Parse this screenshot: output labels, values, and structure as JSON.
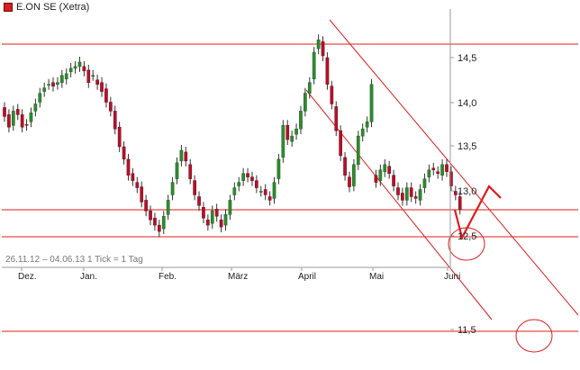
{
  "legend": {
    "label": "E.ON SE (Xetra)"
  },
  "range_label": "26.11.12 – 04.06.13   1 Tick = 1 Tag",
  "colors": {
    "up": "#2e8b2e",
    "down": "#b3122a",
    "annotation": "#e01b1b",
    "axis": "#999999"
  },
  "chart_data": {
    "type": "candlestick",
    "title": "",
    "x_labels": [
      "Dez.",
      "Jan.",
      "Feb.",
      "März",
      "April",
      "Mai",
      "Juni"
    ],
    "y_ticks": [
      "14,5",
      "14,0",
      "13,5",
      "13,0",
      "12,5",
      "11,5"
    ],
    "ylim": [
      11.4,
      14.95
    ],
    "grid": false,
    "series": [
      {
        "name": "",
        "values": [
          [
            13.94,
            13.84
          ],
          [
            13.86,
            13.72
          ],
          [
            13.74,
            13.9
          ],
          [
            13.92,
            13.86
          ],
          [
            13.86,
            13.72
          ],
          [
            13.75,
            13.74
          ],
          [
            13.78,
            13.88
          ],
          [
            13.9,
            13.98
          ],
          [
            14.0,
            14.1
          ],
          [
            14.12,
            14.16
          ],
          [
            14.2,
            14.2
          ],
          [
            14.22,
            14.18
          ],
          [
            14.2,
            14.22
          ],
          [
            14.22,
            14.3
          ],
          [
            14.26,
            14.32
          ],
          [
            14.34,
            14.38
          ],
          [
            14.38,
            14.4
          ],
          [
            14.4,
            14.45
          ],
          [
            14.4,
            14.35
          ],
          [
            14.36,
            14.22
          ],
          [
            14.3,
            14.3
          ],
          [
            14.25,
            14.2
          ],
          [
            14.22,
            14.12
          ],
          [
            14.15,
            14.0
          ],
          [
            14.0,
            13.9
          ],
          [
            13.9,
            13.7
          ],
          [
            13.72,
            13.5
          ],
          [
            13.5,
            13.36
          ],
          [
            13.36,
            13.18
          ],
          [
            13.2,
            13.12
          ],
          [
            13.1,
            13.04
          ],
          [
            13.05,
            12.88
          ],
          [
            12.9,
            12.78
          ],
          [
            12.78,
            12.68
          ],
          [
            12.7,
            12.62
          ],
          [
            12.62,
            12.55
          ],
          [
            12.58,
            12.72
          ],
          [
            12.74,
            12.9
          ],
          [
            12.96,
            13.1
          ],
          [
            13.14,
            13.32
          ],
          [
            13.34,
            13.46
          ],
          [
            13.44,
            13.34
          ],
          [
            13.3,
            13.14
          ],
          [
            13.12,
            12.96
          ],
          [
            12.94,
            12.84
          ],
          [
            12.82,
            12.7
          ],
          [
            12.68,
            12.62
          ],
          [
            12.64,
            12.78
          ],
          [
            12.8,
            12.72
          ],
          [
            12.68,
            12.6
          ],
          [
            12.62,
            12.74
          ],
          [
            12.74,
            12.9
          ],
          [
            12.96,
            13.04
          ],
          [
            13.06,
            13.1
          ],
          [
            13.12,
            13.2
          ],
          [
            13.2,
            13.16
          ],
          [
            13.16,
            13.12
          ],
          [
            13.12,
            13.04
          ],
          [
            13.0,
            13.0
          ],
          [
            13.02,
            12.96
          ],
          [
            12.94,
            12.9
          ],
          [
            12.92,
            13.1
          ],
          [
            13.14,
            13.36
          ],
          [
            13.38,
            13.74
          ],
          [
            13.74,
            13.58
          ],
          [
            13.56,
            13.62
          ],
          [
            13.64,
            13.7
          ],
          [
            13.7,
            13.9
          ],
          [
            13.9,
            14.1
          ],
          [
            14.1,
            14.22
          ],
          [
            14.26,
            14.56
          ],
          [
            14.6,
            14.7
          ],
          [
            14.68,
            14.52
          ],
          [
            14.5,
            14.2
          ],
          [
            14.18,
            13.98
          ],
          [
            13.95,
            13.68
          ],
          [
            13.68,
            13.4
          ],
          [
            13.38,
            13.18
          ],
          [
            13.16,
            13.05
          ],
          [
            13.06,
            13.3
          ],
          [
            13.3,
            13.62
          ],
          [
            13.62,
            13.7
          ],
          [
            13.72,
            13.78
          ],
          [
            13.78,
            14.2
          ],
          [
            13.18,
            13.1
          ],
          [
            13.12,
            13.24
          ],
          [
            13.22,
            13.3
          ],
          [
            13.28,
            13.2
          ],
          [
            13.18,
            13.06
          ],
          [
            13.04,
            12.96
          ],
          [
            12.98,
            12.9
          ],
          [
            12.9,
            13.04
          ],
          [
            13.04,
            12.94
          ],
          [
            12.94,
            12.92
          ],
          [
            12.9,
            13.02
          ],
          [
            13.04,
            13.14
          ],
          [
            13.16,
            13.24
          ],
          [
            13.26,
            13.24
          ],
          [
            13.22,
            13.2
          ],
          [
            13.18,
            13.3
          ],
          [
            13.3,
            13.22
          ],
          [
            13.22,
            13.06
          ],
          [
            13.0,
            12.96
          ],
          [
            12.94,
            12.8
          ]
        ]
      }
    ]
  }
}
